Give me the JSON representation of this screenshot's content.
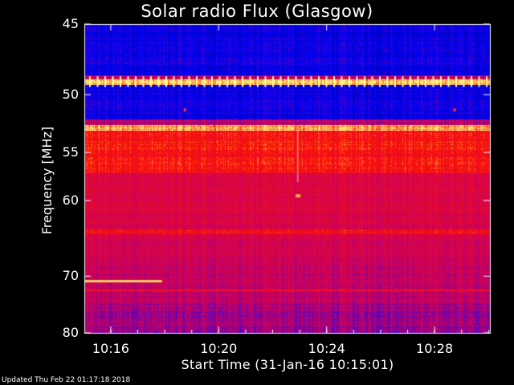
{
  "chart_data": {
    "type": "heatmap",
    "title": "Solar radio Flux (Glasgow)",
    "xlabel": "Start Time (31-Jan-16 10:15:01)",
    "ylabel": "Frequency [MHz]",
    "x_ticks": [
      "10:16",
      "10:20",
      "10:24",
      "10:28"
    ],
    "x_tick_values_min": [
      16,
      20,
      24,
      28
    ],
    "x_range_min": [
      15.02,
      30.05
    ],
    "y_ticks": [
      "45",
      "50",
      "55",
      "60",
      "70",
      "80"
    ],
    "y_tick_values": [
      45,
      50,
      55,
      60,
      70,
      80
    ],
    "y_range": [
      45,
      80
    ],
    "y_scale": "log-like (reciprocal spacing)",
    "colormap": [
      "#000050",
      "#0000ff",
      "#ff0000",
      "#ffff80"
    ],
    "bands": [
      {
        "from_mhz": 45,
        "to_mhz": 48.5,
        "level": "low"
      },
      {
        "from_mhz": 48.8,
        "to_mhz": 49.2,
        "level": "very-high"
      },
      {
        "from_mhz": 49.2,
        "to_mhz": 52,
        "level": "low"
      },
      {
        "from_mhz": 52.5,
        "to_mhz": 53,
        "level": "very-high"
      },
      {
        "from_mhz": 53,
        "to_mhz": 57,
        "level": "high"
      },
      {
        "from_mhz": 57,
        "to_mhz": 80,
        "level": "medium"
      },
      {
        "from_mhz": 63.5,
        "to_mhz": 64,
        "level": "high"
      },
      {
        "from_mhz": 72,
        "to_mhz": 72.5,
        "level": "high"
      }
    ]
  },
  "footer": "Updated Thu Feb 22 01:17:18 2018"
}
